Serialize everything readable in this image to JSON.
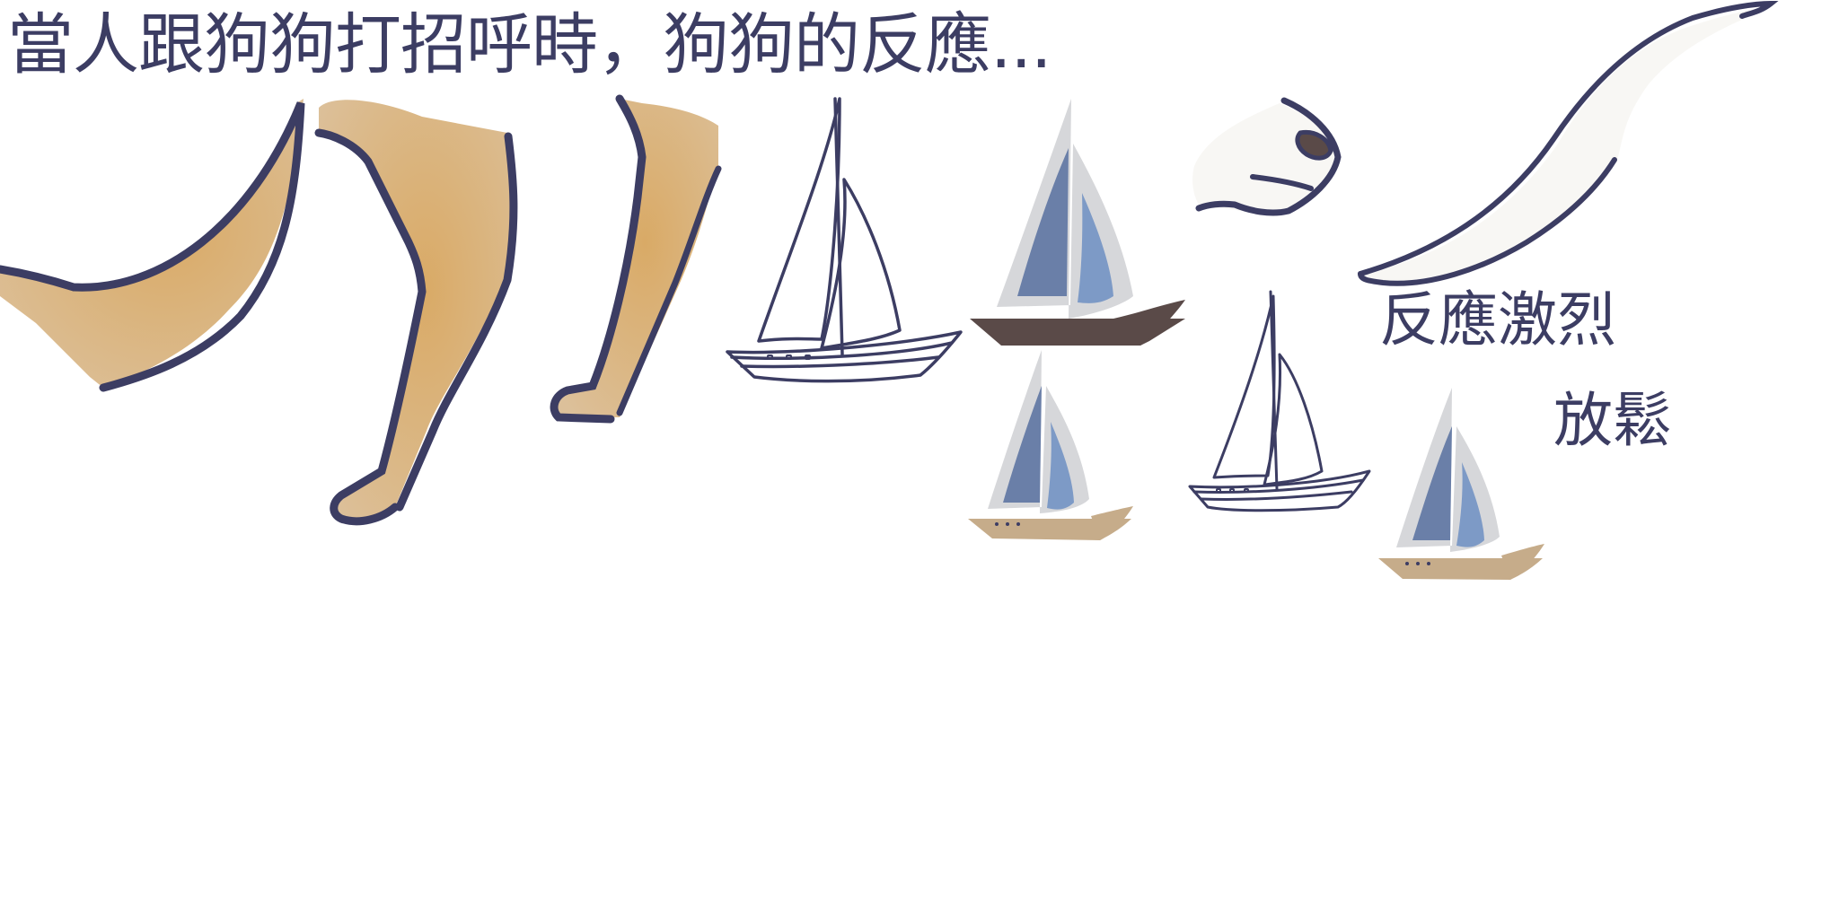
{
  "headline": "當人跟狗狗打招呼時，狗狗的反應...",
  "labels": {
    "strong": "反應激烈",
    "relax": "放鬆"
  },
  "colors": {
    "outline": "#3c3d63",
    "dog_fill": "#d8b98a",
    "dog_fill_accent": "#d9aa66",
    "tail_fill": "#f8f7f4",
    "sail_front": "#6a7fa8",
    "sail_back": "#7d9ac6",
    "sail_shadow": "#d6d7da",
    "hull_dark": "#5a4a48",
    "hull_light": "#c6ac8a"
  }
}
